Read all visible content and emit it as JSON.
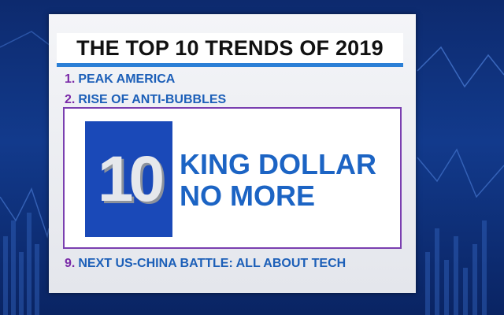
{
  "title": "THE TOP 10 TRENDS OF 2019",
  "items": [
    {
      "number": "1.",
      "text": "PEAK AMERICA"
    },
    {
      "number": "2.",
      "text": "RISE OF ANTI-BUBBLES"
    },
    {
      "number": "9.",
      "text": "NEXT US-CHINA BATTLE: ALL ABOUT TECH"
    }
  ],
  "featured": {
    "number": "10",
    "lines": [
      "KING DOLLAR",
      "NO MORE"
    ]
  }
}
